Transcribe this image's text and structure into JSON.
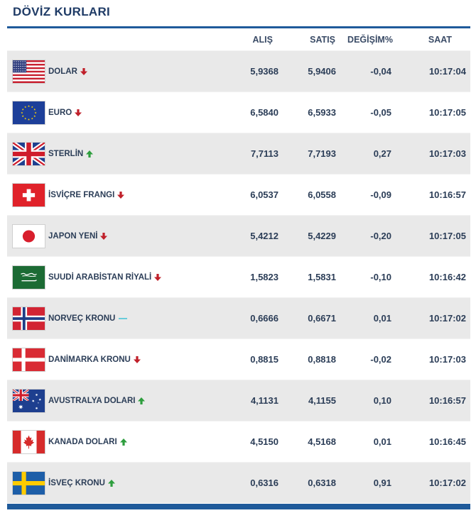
{
  "title": "DÖVİZ KURLARI",
  "headers": {
    "buy": "ALIŞ",
    "sell": "SATIŞ",
    "change": "DEĞİŞİM%",
    "time": "SAAT"
  },
  "rows": [
    {
      "name": "DOLAR",
      "buy": "5,9368",
      "sell": "5,9406",
      "change": "-0,04",
      "time": "10:17:04",
      "trend": "down",
      "flag": "us-flag-icon"
    },
    {
      "name": "EURO",
      "buy": "6,5840",
      "sell": "6,5933",
      "change": "-0,05",
      "time": "10:17:05",
      "trend": "down",
      "flag": "eu-flag-icon"
    },
    {
      "name": "STERLİN",
      "buy": "7,7113",
      "sell": "7,7193",
      "change": "0,27",
      "time": "10:17:03",
      "trend": "up",
      "flag": "uk-flag-icon"
    },
    {
      "name": "İSVİÇRE FRANGI",
      "buy": "6,0537",
      "sell": "6,0558",
      "change": "-0,09",
      "time": "10:16:57",
      "trend": "down",
      "flag": "swiss-flag-icon"
    },
    {
      "name": "JAPON YENİ",
      "buy": "5,4212",
      "sell": "5,4229",
      "change": "-0,20",
      "time": "10:17:05",
      "trend": "down",
      "flag": "japan-flag-icon"
    },
    {
      "name": "SUUDİ ARABİSTAN RİYALİ",
      "buy": "1,5823",
      "sell": "1,5831",
      "change": "-0,10",
      "time": "10:16:42",
      "trend": "down",
      "flag": "saudi-flag-icon"
    },
    {
      "name": "NORVEÇ KRONU",
      "buy": "0,6666",
      "sell": "0,6671",
      "change": "0,01",
      "time": "10:17:02",
      "trend": "flat",
      "flag": "norway-flag-icon"
    },
    {
      "name": "DANİMARKA KRONU",
      "buy": "0,8815",
      "sell": "0,8818",
      "change": "-0,02",
      "time": "10:17:03",
      "trend": "down",
      "flag": "denmark-flag-icon"
    },
    {
      "name": "AVUSTRALYA DOLARI",
      "buy": "4,1131",
      "sell": "4,1155",
      "change": "0,10",
      "time": "10:16:57",
      "trend": "up",
      "flag": "australia-flag-icon"
    },
    {
      "name": "KANADA DOLARI",
      "buy": "4,5150",
      "sell": "4,5168",
      "change": "0,01",
      "time": "10:16:45",
      "trend": "up",
      "flag": "canada-flag-icon"
    },
    {
      "name": "İSVEÇ KRONU",
      "buy": "0,6316",
      "sell": "0,6318",
      "change": "0,91",
      "time": "10:17:02",
      "trend": "up",
      "flag": "sweden-flag-icon"
    }
  ],
  "colors": {
    "accent": "#1f5a9a",
    "up": "#2e9e3e",
    "down": "#c0202a",
    "flat": "#5bc8d8"
  }
}
